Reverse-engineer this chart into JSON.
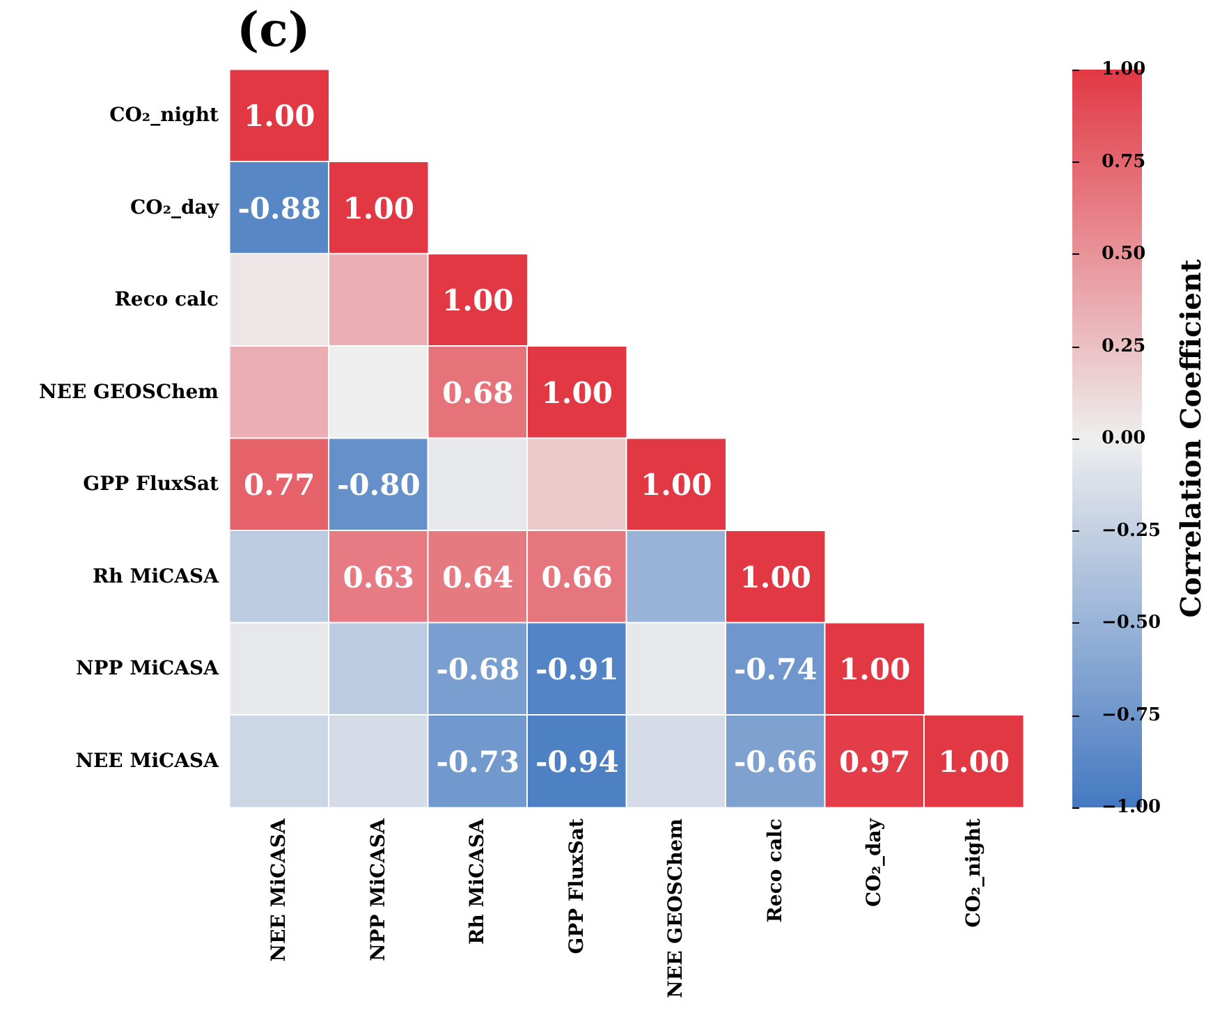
{
  "chart_data": {
    "type": "heatmap",
    "title": "(c)",
    "clabel": "Correlation Coefficient",
    "categories": [
      "NEE MiCASA",
      "NPP MiCASA",
      "Rh MiCASA",
      "GPP FluxSat",
      "NEE GEOSChem",
      "Reco calc",
      "CO₂_day",
      "CO₂_night"
    ],
    "y_categories": [
      "CO₂_night",
      "CO₂_day",
      "Reco calc",
      "NEE GEOSChem",
      "GPP FluxSat",
      "Rh MiCASA",
      "NPP MiCASA",
      "NEE MiCASA"
    ],
    "cells": [
      [
        1.0,
        null,
        null,
        null,
        null,
        null,
        null,
        null
      ],
      [
        -0.88,
        1.0,
        null,
        null,
        null,
        null,
        null,
        null
      ],
      [
        0.05,
        0.35,
        1.0,
        null,
        null,
        null,
        null,
        null
      ],
      [
        0.35,
        0.0,
        0.68,
        1.0,
        null,
        null,
        null,
        null
      ],
      [
        0.77,
        -0.8,
        -0.05,
        0.2,
        1.0,
        null,
        null,
        null
      ],
      [
        -0.3,
        0.63,
        0.64,
        0.66,
        -0.5,
        1.0,
        null,
        null
      ],
      [
        -0.05,
        -0.3,
        -0.68,
        -0.91,
        -0.05,
        -0.74,
        1.0,
        null
      ],
      [
        -0.2,
        -0.15,
        -0.73,
        -0.94,
        -0.15,
        -0.66,
        0.97,
        1.0
      ]
    ],
    "cell_labels": [
      [
        "1.00",
        null,
        null,
        null,
        null,
        null,
        null,
        null
      ],
      [
        "-0.88",
        "1.00",
        null,
        null,
        null,
        null,
        null,
        null
      ],
      [
        null,
        null,
        "1.00",
        null,
        null,
        null,
        null,
        null
      ],
      [
        null,
        null,
        "0.68",
        "1.00",
        null,
        null,
        null,
        null
      ],
      [
        "0.77",
        "-0.80",
        null,
        null,
        "1.00",
        null,
        null,
        null
      ],
      [
        null,
        "0.63",
        "0.64",
        "0.66",
        null,
        "1.00",
        null,
        null
      ],
      [
        null,
        null,
        "-0.68",
        "-0.91",
        null,
        "-0.74",
        "1.00",
        null
      ],
      [
        null,
        null,
        "-0.73",
        "-0.94",
        null,
        "-0.66",
        "0.97",
        "1.00"
      ]
    ],
    "clim": [
      -1,
      1
    ],
    "cticks": [
      {
        "value": -1,
        "label": "−1.00"
      },
      {
        "value": -0.75,
        "label": "−0.75"
      },
      {
        "value": -0.5,
        "label": "−0.50"
      },
      {
        "value": -0.25,
        "label": "−0.25"
      },
      {
        "value": 0,
        "label": "0.00"
      },
      {
        "value": 0.25,
        "label": "0.25"
      },
      {
        "value": 0.5,
        "label": "0.50"
      },
      {
        "value": 0.75,
        "label": "0.75"
      },
      {
        "value": 1,
        "label": "1.00"
      }
    ]
  }
}
